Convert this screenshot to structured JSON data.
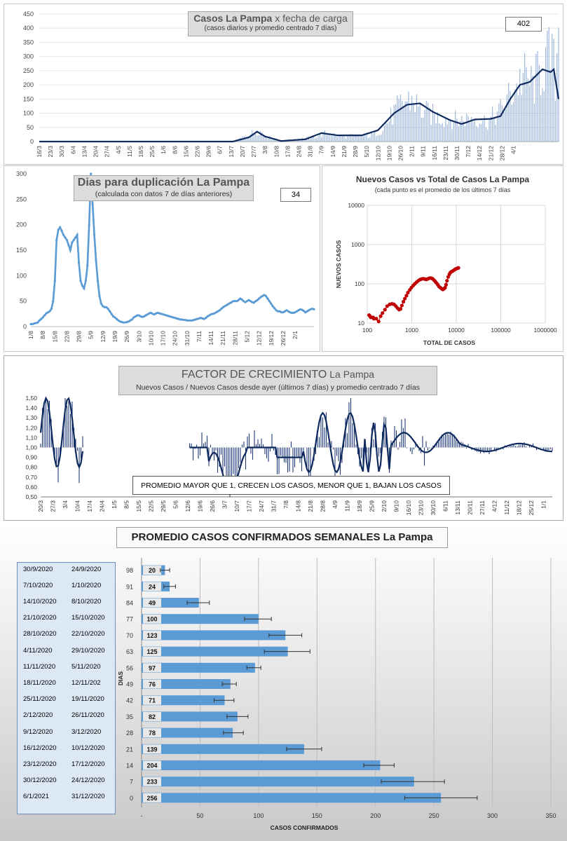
{
  "panel1": {
    "title_bold": "Casos  La Pampa",
    "title_rest": " x fecha de carga",
    "subtitle": "(casos diarios y promedio centrado 7 días)",
    "value_box": "402",
    "y_ticks": [
      "0",
      "50",
      "100",
      "150",
      "200",
      "250",
      "300",
      "350",
      "400",
      "450"
    ],
    "x_ticks": [
      "16/3",
      "23/3",
      "30/3",
      "6/4",
      "13/4",
      "20/4",
      "27/4",
      "4/5",
      "11/5",
      "18/5",
      "25/5",
      "1/6",
      "8/6",
      "15/6",
      "22/6",
      "29/6",
      "6/7",
      "13/7",
      "20/7",
      "27/7",
      "3/8",
      "10/8",
      "17/8",
      "24/8",
      "31/8",
      "7/9",
      "14/9",
      "21/9",
      "28/9",
      "5/10",
      "12/10",
      "19/10",
      "26/10",
      "2/11",
      "9/11",
      "16/11",
      "23/11",
      "30/11",
      "7/12",
      "14/12",
      "21/12",
      "28/12",
      "4/1"
    ]
  },
  "panel2": {
    "title": "Dias para duplicación La Pampa",
    "subtitle": "(calculada con datos 7 de días anteriores)",
    "value_box": "34",
    "y_ticks": [
      "0",
      "50",
      "100",
      "150",
      "200",
      "250",
      "300"
    ],
    "x_ticks": [
      "1/8",
      "8/8",
      "15/8",
      "22/8",
      "29/8",
      "5/9",
      "12/9",
      "19/9",
      "26/9",
      "3/10",
      "10/10",
      "17/10",
      "24/10",
      "31/10",
      "7/11",
      "14/11",
      "21/11",
      "28/11",
      "5/12",
      "12/12",
      "19/12",
      "26/12",
      "2/1"
    ]
  },
  "panel3": {
    "title": "Nuevos Casos vs Total de Casos La Pampa",
    "subtitle": "(cada punto es el promedio de los últimos 7 días",
    "y_label": "NUEVOS CASOS",
    "x_label": "TOTAL DE CASOS",
    "y_ticks": [
      "10",
      "100",
      "1000",
      "10000"
    ],
    "x_ticks": [
      "100",
      "1000",
      "10000",
      "100000",
      "1000000"
    ]
  },
  "panel4": {
    "title_main": "FACTOR DE CRECIMIENTO",
    "title_rest": " La Pampa",
    "subtitle": "Nuevos Casos   / Nuevos Casos desde ayer (últimos 7 días) y promedio  centrado  7 días",
    "note": "PROMEDIO MAYOR QUE 1, CRECEN LOS CASOS, MENOR QUE 1, BAJAN LOS CASOS",
    "y_ticks": [
      "0,50",
      "0,60",
      "0,70",
      "0,80",
      "0,90",
      "1,00",
      "1,10",
      "1,20",
      "1,30",
      "1,40",
      "1,50"
    ],
    "x_ticks": [
      "20/3",
      "27/3",
      "3/4",
      "10/4",
      "17/4",
      "24/4",
      "1/5",
      "8/5",
      "15/5",
      "22/5",
      "29/5",
      "5/6",
      "12/6",
      "19/6",
      "26/6",
      "3/7",
      "10/7",
      "17/7",
      "24/7",
      "31/7",
      "7/8",
      "14/8",
      "21/8",
      "28/8",
      "4/9",
      "11/9",
      "18/9",
      "25/9",
      "2/10",
      "9/10",
      "16/10",
      "23/10",
      "30/10",
      "6/11",
      "13/11",
      "20/11",
      "27/11",
      "4/12",
      "11/12",
      "18/12",
      "25/12",
      "1/1"
    ]
  },
  "panel5": {
    "title": "PROMEDIO CASOS CONFIRMADOS SEMANALES La Pampa",
    "y_label": "DIAS",
    "x_label": "CASOS CONFIRMADOS",
    "x_ticks": [
      "-",
      "50",
      "100",
      "150",
      "200",
      "250",
      "300",
      "350"
    ],
    "rows": [
      {
        "date_end": "30/9/2020",
        "date_start": "24/9/2020",
        "days": "98",
        "value": "20"
      },
      {
        "date_end": "7/10/2020",
        "date_start": "1/10/2020",
        "days": "91",
        "value": "24"
      },
      {
        "date_end": "14/10/2020",
        "date_start": "8/10/2020",
        "days": "84",
        "value": "49"
      },
      {
        "date_end": "21/10/2020",
        "date_start": "15/10/2020",
        "days": "77",
        "value": "100"
      },
      {
        "date_end": "28/10/2020",
        "date_start": "22/10/2020",
        "days": "70",
        "value": "123"
      },
      {
        "date_end": "4/11/2020",
        "date_start": "29/10/2020",
        "days": "63",
        "value": "125"
      },
      {
        "date_end": "11/11/2020",
        "date_start": "5/11/2020",
        "days": "56",
        "value": "97"
      },
      {
        "date_end": "18/11/2020",
        "date_start": "12/11/202",
        "days": "49",
        "value": "76"
      },
      {
        "date_end": "25/11/2020",
        "date_start": "19/11/2020",
        "days": "42",
        "value": "71"
      },
      {
        "date_end": "2/12/2020",
        "date_start": "26/11/2020",
        "days": "35",
        "value": "82"
      },
      {
        "date_end": "9/12/2020",
        "date_start": "3/12/2020",
        "days": "28",
        "value": "78"
      },
      {
        "date_end": "16/12/2020",
        "date_start": "10/12/2020",
        "days": "21",
        "value": "139"
      },
      {
        "date_end": "23/12/2020",
        "date_start": "17/12/2020",
        "days": "14",
        "value": "204"
      },
      {
        "date_end": "30/12/2020",
        "date_start": "24/12/2020",
        "days": "7",
        "value": "233"
      },
      {
        "date_end": "6/1/2021",
        "date_start": "31/12/2020",
        "days": "0",
        "value": "256"
      }
    ]
  },
  "chart_data": [
    {
      "type": "bar",
      "title": "Casos  La Pampa x fecha de carga",
      "subtitle": "(casos diarios y promedio centrado 7 días)",
      "ylim": [
        0,
        450
      ],
      "bar_color": "#9fb8dc",
      "line_color": "#0f2a5e",
      "daily_start": "16/3",
      "daily_end": "6/1",
      "daily_profile": [
        [
          0,
          0
        ],
        [
          120,
          0
        ],
        [
          128,
          20
        ],
        [
          136,
          40
        ],
        [
          142,
          15
        ],
        [
          150,
          3
        ],
        [
          170,
          15
        ],
        [
          178,
          30
        ],
        [
          186,
          20
        ],
        [
          205,
          20
        ],
        [
          212,
          40
        ],
        [
          220,
          100
        ],
        [
          226,
          140
        ],
        [
          232,
          150
        ],
        [
          236,
          110
        ],
        [
          248,
          85
        ],
        [
          260,
          75
        ],
        [
          268,
          85
        ],
        [
          278,
          70
        ],
        [
          286,
          110
        ],
        [
          296,
          200
        ],
        [
          300,
          230
        ],
        [
          306,
          200
        ],
        [
          314,
          280
        ],
        [
          318,
          300
        ],
        [
          320,
          220
        ],
        [
          322,
          402
        ]
      ],
      "average_profile": [
        [
          0,
          0
        ],
        [
          120,
          0
        ],
        [
          130,
          15
        ],
        [
          135,
          35
        ],
        [
          140,
          18
        ],
        [
          150,
          2
        ],
        [
          165,
          8
        ],
        [
          175,
          30
        ],
        [
          185,
          22
        ],
        [
          200,
          22
        ],
        [
          210,
          40
        ],
        [
          220,
          100
        ],
        [
          228,
          130
        ],
        [
          236,
          135
        ],
        [
          244,
          105
        ],
        [
          255,
          75
        ],
        [
          262,
          62
        ],
        [
          270,
          78
        ],
        [
          280,
          80
        ],
        [
          286,
          90
        ],
        [
          292,
          150
        ],
        [
          298,
          200
        ],
        [
          304,
          210
        ],
        [
          312,
          255
        ],
        [
          317,
          245
        ],
        [
          319,
          255
        ],
        [
          322,
          150
        ]
      ]
    },
    {
      "type": "line",
      "title": "Dias para duplicación La Pampa",
      "subtitle": "(calculada con datos 7 de días anteriores)",
      "ylim": [
        0,
        300
      ],
      "x_start": "1/8",
      "x_end": "6/1",
      "color": "#5b9bd5",
      "values": [
        5,
        5,
        6,
        7,
        8,
        12,
        15,
        18,
        22,
        26,
        28,
        30,
        35,
        50,
        90,
        170,
        190,
        195,
        188,
        180,
        175,
        170,
        160,
        150,
        165,
        170,
        175,
        180,
        125,
        90,
        80,
        75,
        90,
        120,
        200,
        300,
        240,
        180,
        130,
        90,
        60,
        45,
        40,
        38,
        38,
        35,
        30,
        25,
        20,
        18,
        15,
        12,
        10,
        9,
        8,
        8,
        9,
        10,
        12,
        14,
        18,
        20,
        22,
        22,
        20,
        19,
        20,
        22,
        24,
        26,
        27,
        25,
        24,
        26,
        27,
        26,
        25,
        24,
        23,
        22,
        21,
        20,
        19,
        18,
        17,
        16,
        15,
        14,
        14,
        13,
        13,
        12,
        12,
        12,
        12,
        13,
        14,
        15,
        16,
        17,
        16,
        15,
        17,
        20,
        22,
        24,
        25,
        26,
        28,
        30,
        32,
        35,
        38,
        40,
        42,
        44,
        46,
        48,
        50,
        50,
        50,
        52,
        55,
        53,
        50,
        48,
        50,
        52,
        50,
        48,
        47,
        50,
        52,
        55,
        58,
        60,
        62,
        60,
        55,
        50,
        45,
        40,
        36,
        32,
        30,
        30,
        28,
        28,
        30,
        32,
        30,
        28,
        27,
        27,
        28,
        30,
        32,
        34,
        33,
        31,
        28,
        30,
        32,
        34,
        35,
        34
      ]
    },
    {
      "type": "scatter",
      "title": "Nuevos Casos vs Total de Casos La Pampa",
      "subtitle": "(cada punto es el promedio de los últimos 7 días",
      "xlabel": "TOTAL DE CASOS",
      "ylabel": "NUEVOS CASOS",
      "x_scale": "log",
      "y_scale": "log",
      "xlim": [
        100,
        1000000
      ],
      "ylim": [
        10,
        10000
      ],
      "color": "#c00000",
      "points": [
        [
          110,
          16
        ],
        [
          115,
          15
        ],
        [
          120,
          14
        ],
        [
          135,
          14
        ],
        [
          140,
          13
        ],
        [
          160,
          13
        ],
        [
          180,
          11
        ],
        [
          200,
          15
        ],
        [
          220,
          18
        ],
        [
          250,
          22
        ],
        [
          280,
          27
        ],
        [
          320,
          30
        ],
        [
          360,
          31
        ],
        [
          400,
          30
        ],
        [
          440,
          27
        ],
        [
          480,
          24
        ],
        [
          520,
          22
        ],
        [
          560,
          23
        ],
        [
          600,
          28
        ],
        [
          650,
          35
        ],
        [
          700,
          42
        ],
        [
          760,
          50
        ],
        [
          820,
          60
        ],
        [
          900,
          70
        ],
        [
          980,
          80
        ],
        [
          1070,
          90
        ],
        [
          1170,
          100
        ],
        [
          1280,
          110
        ],
        [
          1400,
          120
        ],
        [
          1530,
          128
        ],
        [
          1670,
          133
        ],
        [
          1820,
          135
        ],
        [
          1980,
          132
        ],
        [
          2150,
          130
        ],
        [
          2330,
          135
        ],
        [
          2520,
          140
        ],
        [
          2720,
          140
        ],
        [
          2930,
          135
        ],
        [
          3150,
          125
        ],
        [
          3370,
          115
        ],
        [
          3600,
          105
        ],
        [
          3850,
          95
        ],
        [
          4100,
          85
        ],
        [
          4400,
          80
        ],
        [
          4700,
          75
        ],
        [
          5000,
          72
        ],
        [
          5300,
          75
        ],
        [
          5600,
          80
        ],
        [
          5900,
          95
        ],
        [
          6200,
          120
        ],
        [
          6600,
          150
        ],
        [
          7000,
          175
        ],
        [
          7400,
          195
        ],
        [
          7800,
          205
        ],
        [
          8200,
          210
        ],
        [
          8700,
          220
        ],
        [
          9200,
          230
        ],
        [
          9700,
          240
        ],
        [
          10200,
          245
        ],
        [
          10700,
          250
        ],
        [
          11200,
          255
        ]
      ]
    },
    {
      "type": "line",
      "title": "FACTOR DE CRECIMIENTO La Pampa",
      "subtitle": "Nuevos Casos   / Nuevos Casos desde ayer (últimos 7 días) y promedio  centrado  7 días",
      "ylim": [
        0.5,
        1.5
      ],
      "x_start": "20/3",
      "x_end": "6/1",
      "daily_color": "#1f3a78",
      "average_color": "#0f2a5e"
    },
    {
      "type": "bar",
      "orientation": "horizontal",
      "title": "PROMEDIO CASOS CONFIRMADOS SEMANALES La Pampa",
      "xlabel": "CASOS CONFIRMADOS",
      "ylabel": "DIAS",
      "xlim": [
        0,
        350
      ],
      "color": "#5b9bd5",
      "categories": [
        "98",
        "91",
        "84",
        "77",
        "70",
        "63",
        "56",
        "49",
        "42",
        "35",
        "28",
        "21",
        "14",
        "7",
        "0"
      ],
      "values": [
        20,
        24,
        49,
        100,
        123,
        125,
        97,
        76,
        71,
        82,
        78,
        139,
        204,
        233,
        256
      ],
      "error_low": [
        16,
        19,
        39,
        88,
        109,
        105,
        90,
        69,
        62,
        73,
        70,
        124,
        190,
        205,
        225
      ],
      "error_high": [
        24,
        29,
        58,
        111,
        137,
        144,
        102,
        81,
        79,
        91,
        87,
        154,
        216,
        259,
        287
      ]
    }
  ]
}
